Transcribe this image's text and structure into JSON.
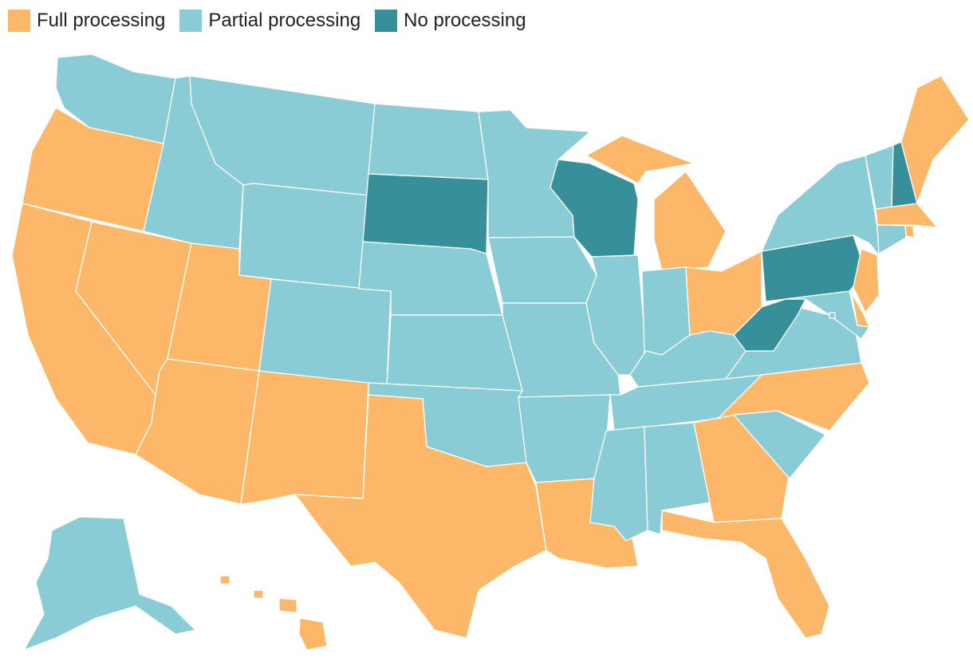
{
  "legend": {
    "full": {
      "label": "Full processing",
      "color": "#FDB768"
    },
    "partial": {
      "label": "Partial processing",
      "color": "#8ACCD6"
    },
    "none": {
      "label": "No processing",
      "color": "#368F99"
    }
  },
  "states": [
    {
      "name": "Washington",
      "category": "partial"
    },
    {
      "name": "Oregon",
      "category": "full"
    },
    {
      "name": "California",
      "category": "full"
    },
    {
      "name": "Nevada",
      "category": "full"
    },
    {
      "name": "Idaho",
      "category": "partial"
    },
    {
      "name": "Montana",
      "category": "partial"
    },
    {
      "name": "Wyoming",
      "category": "partial"
    },
    {
      "name": "Utah",
      "category": "full"
    },
    {
      "name": "Arizona",
      "category": "full"
    },
    {
      "name": "Colorado",
      "category": "partial"
    },
    {
      "name": "New Mexico",
      "category": "full"
    },
    {
      "name": "North Dakota",
      "category": "partial"
    },
    {
      "name": "South Dakota",
      "category": "none"
    },
    {
      "name": "Nebraska",
      "category": "partial"
    },
    {
      "name": "Kansas",
      "category": "partial"
    },
    {
      "name": "Oklahoma",
      "category": "partial"
    },
    {
      "name": "Texas",
      "category": "full"
    },
    {
      "name": "Minnesota",
      "category": "partial"
    },
    {
      "name": "Iowa",
      "category": "partial"
    },
    {
      "name": "Missouri",
      "category": "partial"
    },
    {
      "name": "Arkansas",
      "category": "partial"
    },
    {
      "name": "Louisiana",
      "category": "full"
    },
    {
      "name": "Wisconsin",
      "category": "none"
    },
    {
      "name": "Illinois",
      "category": "partial"
    },
    {
      "name": "Michigan",
      "category": "full"
    },
    {
      "name": "Indiana",
      "category": "partial"
    },
    {
      "name": "Ohio",
      "category": "full"
    },
    {
      "name": "Kentucky",
      "category": "partial"
    },
    {
      "name": "Tennessee",
      "category": "partial"
    },
    {
      "name": "Mississippi",
      "category": "partial"
    },
    {
      "name": "Alabama",
      "category": "partial"
    },
    {
      "name": "Georgia",
      "category": "full"
    },
    {
      "name": "Florida",
      "category": "full"
    },
    {
      "name": "South Carolina",
      "category": "partial"
    },
    {
      "name": "North Carolina",
      "category": "full"
    },
    {
      "name": "Virginia",
      "category": "partial"
    },
    {
      "name": "West Virginia",
      "category": "none"
    },
    {
      "name": "Pennsylvania",
      "category": "none"
    },
    {
      "name": "New York",
      "category": "partial"
    },
    {
      "name": "Vermont",
      "category": "partial"
    },
    {
      "name": "New Hampshire",
      "category": "none"
    },
    {
      "name": "Maine",
      "category": "full"
    },
    {
      "name": "Massachusetts",
      "category": "full"
    },
    {
      "name": "Rhode Island",
      "category": "full"
    },
    {
      "name": "Connecticut",
      "category": "partial"
    },
    {
      "name": "New Jersey",
      "category": "full"
    },
    {
      "name": "Delaware",
      "category": "full"
    },
    {
      "name": "Maryland",
      "category": "partial"
    },
    {
      "name": "District of Columbia",
      "category": "partial"
    },
    {
      "name": "Alaska",
      "category": "partial"
    },
    {
      "name": "Hawaii",
      "category": "full"
    }
  ]
}
